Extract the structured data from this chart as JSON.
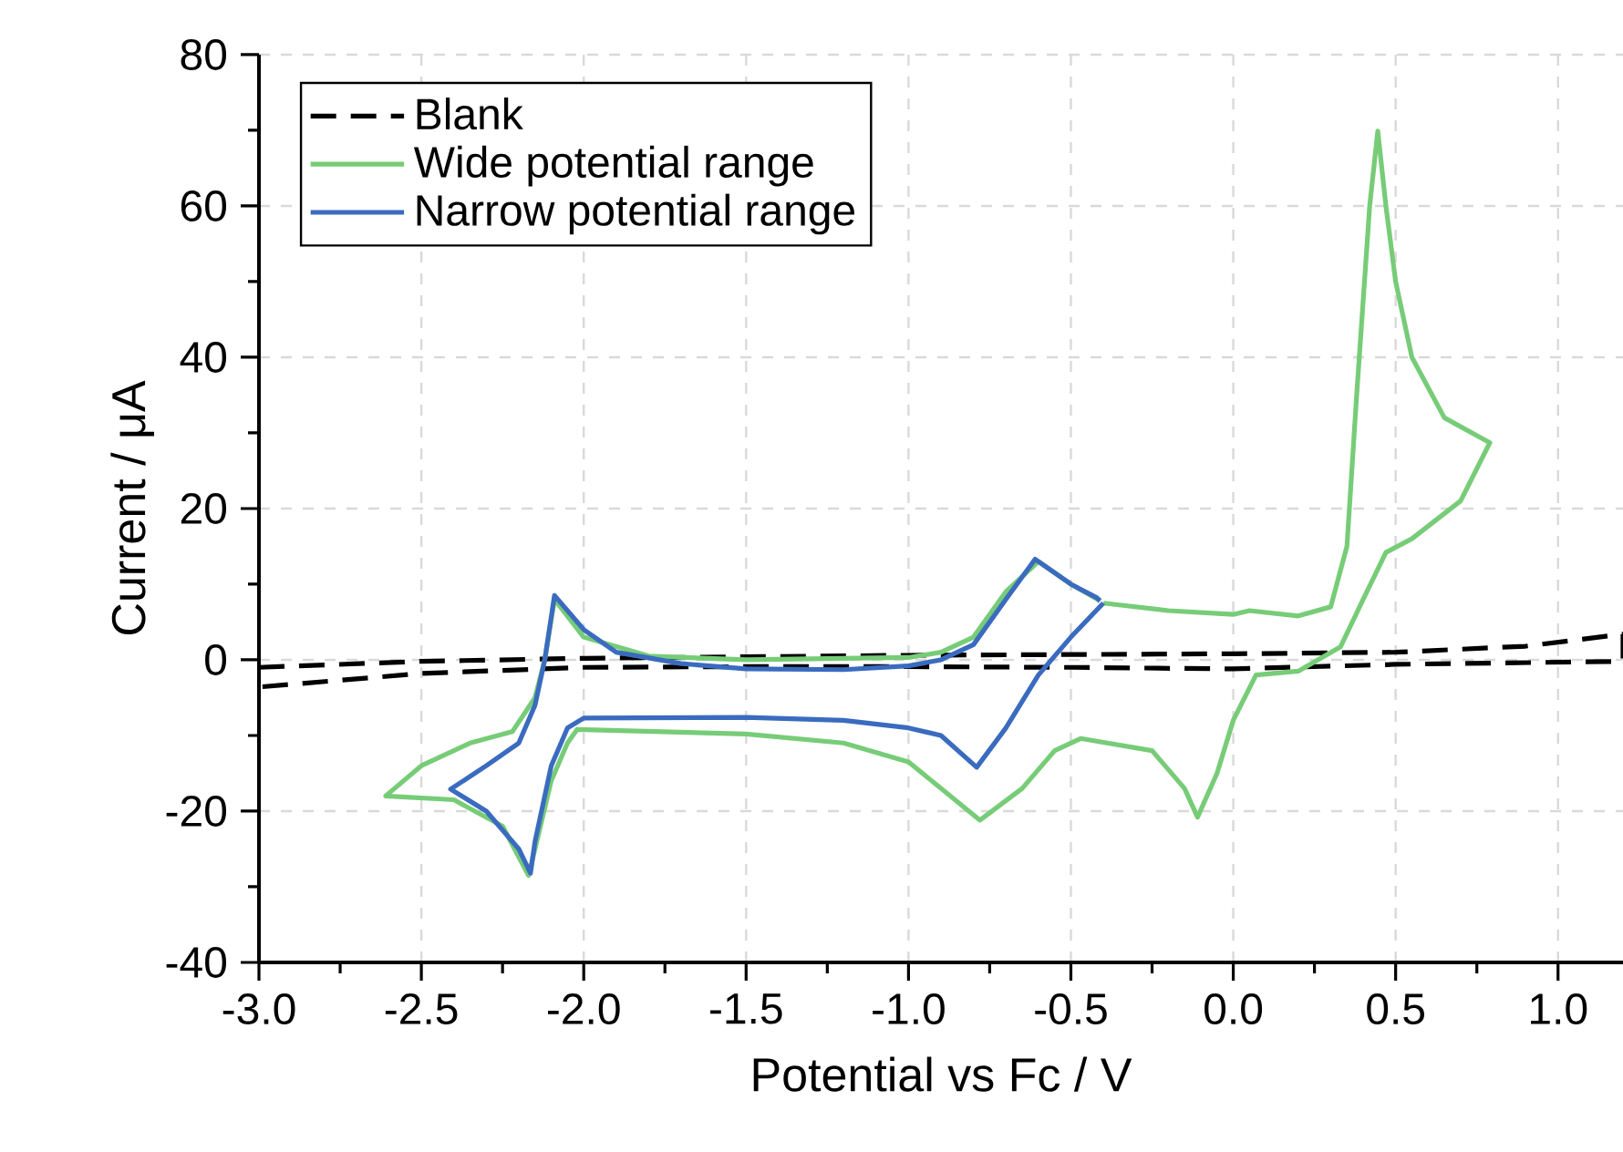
{
  "chart_data": {
    "type": "line",
    "xlabel": "Potential vs Fc / V",
    "ylabel": "Current / μA",
    "xlim": [
      -3.0,
      1.2
    ],
    "ylim": [
      -40,
      80
    ],
    "xticks": [
      {
        "value": -3.0,
        "label": "-3.0"
      },
      {
        "value": -2.5,
        "label": "-2.5"
      },
      {
        "value": -2.0,
        "label": "-2.0"
      },
      {
        "value": -1.5,
        "label": "-1.5"
      },
      {
        "value": -1.0,
        "label": "-1.0"
      },
      {
        "value": -0.5,
        "label": "-0.5"
      },
      {
        "value": 0.0,
        "label": "0.0"
      },
      {
        "value": 0.5,
        "label": "0.5"
      },
      {
        "value": 1.0,
        "label": "1.0"
      }
    ],
    "yticks": [
      -40,
      -20,
      0,
      20,
      40,
      60,
      80
    ],
    "grid": true,
    "legend": "top left",
    "marker": "none",
    "series": [
      {
        "name": "Blank",
        "color": "#000000",
        "line_style": "dashed",
        "x": [
          -3.0,
          -2.5,
          -2.0,
          -1.5,
          -1.0,
          -0.5,
          0.0,
          0.5,
          0.9,
          1.2,
          1.2,
          0.5,
          0.0,
          -0.5,
          -1.0,
          -1.5,
          -2.0,
          -2.5,
          -3.0
        ],
        "values": [
          -1.0,
          -0.2,
          0.2,
          0.4,
          0.6,
          0.7,
          0.8,
          1.0,
          1.8,
          3.4,
          -0.2,
          -0.6,
          -1.2,
          -1.0,
          -0.9,
          -0.9,
          -1.0,
          -1.8,
          -3.6
        ]
      },
      {
        "name": "Wide potential range",
        "color": "#77cc77",
        "line_style": "solid",
        "x": [
          -0.4,
          -0.2,
          0.0,
          0.05,
          0.2,
          0.3,
          0.35,
          0.38,
          0.42,
          0.445,
          0.47,
          0.5,
          0.55,
          0.65,
          0.79,
          0.7,
          0.55,
          0.47,
          0.4,
          0.33,
          0.2,
          0.07,
          0.0,
          -0.05,
          -0.11,
          -0.15,
          -0.25,
          -0.47,
          -0.55,
          -0.65,
          -0.78,
          -0.9,
          -1.0,
          -1.2,
          -1.5,
          -2.02,
          -2.05,
          -2.1,
          -2.15,
          -2.17,
          -2.25,
          -2.4,
          -2.61,
          -2.5,
          -2.35,
          -2.22,
          -2.15,
          -2.12,
          -2.09,
          -2.0,
          -1.8,
          -1.5,
          -1.0,
          -0.9,
          -0.8,
          -0.7,
          -0.6,
          -0.5,
          -0.41
        ],
        "values": [
          7.5,
          6.5,
          6.0,
          6.5,
          5.8,
          7.0,
          15,
          35,
          60,
          69.9,
          60,
          50,
          40,
          32,
          28.7,
          21,
          16,
          14.2,
          8,
          1.7,
          -1.5,
          -2.0,
          -8,
          -15,
          -20.8,
          -17,
          -12,
          -10.4,
          -12,
          -17,
          -21.2,
          -17,
          -13.5,
          -11,
          -9.8,
          -9.2,
          -11,
          -16,
          -25,
          -28.5,
          -22,
          -18.5,
          -18,
          -14,
          -11,
          -9.5,
          -5,
          0,
          8,
          3,
          0.5,
          0,
          0.3,
          1,
          3,
          9,
          13,
          10,
          7.8
        ]
      },
      {
        "name": "Narrow potential range",
        "color": "#3a6bbf",
        "line_style": "solid",
        "x": [
          -0.4,
          -0.5,
          -0.6,
          -0.7,
          -0.79,
          -0.9,
          -1.0,
          -1.2,
          -1.5,
          -2.0,
          -2.05,
          -2.1,
          -2.15,
          -2.164,
          -2.2,
          -2.3,
          -2.41,
          -2.3,
          -2.2,
          -2.15,
          -2.12,
          -2.09,
          -2.0,
          -1.9,
          -1.7,
          -1.5,
          -1.2,
          -1.0,
          -0.9,
          -0.8,
          -0.7,
          -0.61,
          -0.5,
          -0.42,
          -0.41
        ],
        "values": [
          7.5,
          3,
          -2,
          -9,
          -14.2,
          -10,
          -9,
          -8,
          -7.6,
          -7.7,
          -9,
          -14,
          -24,
          -28.2,
          -25,
          -20,
          -17.1,
          -14,
          -11,
          -6,
          0,
          8.5,
          4,
          1,
          -0.5,
          -1.2,
          -1.3,
          -0.8,
          0,
          2,
          8,
          13.3,
          10,
          8.2,
          7.8
        ]
      }
    ]
  }
}
